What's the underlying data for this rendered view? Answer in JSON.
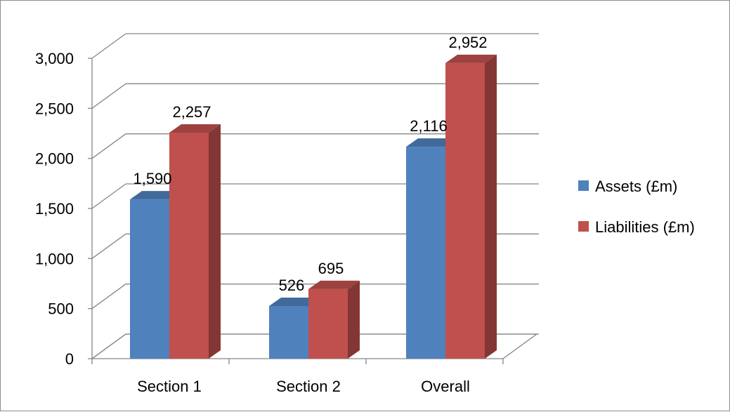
{
  "chart_data": {
    "type": "bar",
    "style": "3d-clustered-column",
    "title": "",
    "xlabel": "",
    "ylabel": "",
    "categories": [
      "Section 1",
      "Section 2",
      "Overall"
    ],
    "series": [
      {
        "name": "Assets (£m)",
        "color": "#4F81BD",
        "values": [
          1590,
          526,
          2116
        ],
        "labels": [
          "1,590",
          "526",
          "2,116"
        ]
      },
      {
        "name": "Liabilities (£m)",
        "color": "#C0504D",
        "values": [
          2257,
          695,
          2952
        ],
        "labels": [
          "2,257",
          "695",
          "2,952"
        ]
      }
    ],
    "ylim": [
      0,
      3000
    ],
    "yticks": [
      0,
      500,
      1000,
      1500,
      2000,
      2500,
      3000
    ],
    "ytick_labels": [
      "0",
      "500",
      "1,000",
      "1,500",
      "2,000",
      "2,500",
      "3,000"
    ],
    "grid": true,
    "legend": "right"
  }
}
